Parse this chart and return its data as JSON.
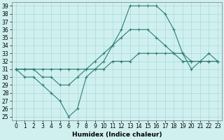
{
  "xlabel": "Humidex (Indice chaleur)",
  "x": [
    0,
    1,
    2,
    3,
    4,
    5,
    6,
    7,
    8,
    9,
    10,
    11,
    12,
    13,
    14,
    15,
    16,
    17,
    18,
    19,
    20,
    21,
    22,
    23
  ],
  "line1_y": [
    31,
    30,
    30,
    29,
    28,
    27,
    25,
    26,
    30,
    31,
    32,
    34,
    36,
    39,
    39,
    39,
    39,
    38,
    36,
    33,
    31,
    32,
    33,
    32
  ],
  "line2_y": [
    31,
    31,
    31,
    30,
    30,
    29,
    29,
    30,
    31,
    32,
    33,
    34,
    35,
    36,
    36,
    36,
    35,
    34,
    33,
    33,
    32,
    32,
    32,
    32
  ],
  "line3_y": [
    31,
    31,
    31,
    31,
    31,
    31,
    31,
    31,
    31,
    31,
    31,
    32,
    32,
    32,
    33,
    33,
    33,
    33,
    33,
    32,
    32,
    32,
    32,
    32
  ],
  "line_color": "#2e7d73",
  "bg_color": "#d0f0f0",
  "grid_color": "#aad8d8",
  "ylim": [
    24.5,
    39.5
  ],
  "yticks": [
    25,
    26,
    27,
    28,
    29,
    30,
    31,
    32,
    33,
    34,
    35,
    36,
    37,
    38,
    39
  ],
  "xticks": [
    0,
    1,
    2,
    3,
    4,
    5,
    6,
    7,
    8,
    9,
    10,
    11,
    12,
    13,
    14,
    15,
    16,
    17,
    18,
    19,
    20,
    21,
    22,
    23
  ],
  "tick_fontsize": 5.5,
  "xlabel_fontsize": 6.5
}
